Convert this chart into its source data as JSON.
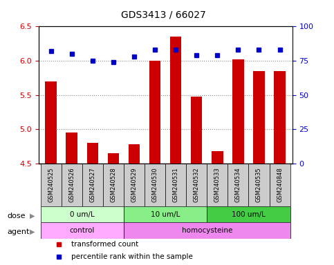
{
  "title": "GDS3413 / 66027",
  "samples": [
    "GSM240525",
    "GSM240526",
    "GSM240527",
    "GSM240528",
    "GSM240529",
    "GSM240530",
    "GSM240531",
    "GSM240532",
    "GSM240533",
    "GSM240534",
    "GSM240535",
    "GSM240848"
  ],
  "bar_values": [
    5.7,
    4.95,
    4.8,
    4.65,
    4.78,
    6.0,
    6.35,
    5.48,
    4.68,
    6.02,
    5.85,
    5.85
  ],
  "blue_values": [
    82,
    80,
    75,
    74,
    78,
    83,
    83,
    79,
    79,
    83,
    83,
    83
  ],
  "ylim_left": [
    4.5,
    6.5
  ],
  "ylim_right": [
    0,
    100
  ],
  "yticks_left": [
    4.5,
    5.0,
    5.5,
    6.0,
    6.5
  ],
  "yticks_right": [
    0,
    25,
    50,
    75,
    100
  ],
  "bar_color": "#cc0000",
  "blue_color": "#0000cc",
  "dot_line_y": [
    6.0,
    5.5,
    5.0
  ],
  "dose_groups": [
    {
      "label": "0 um/L",
      "start": 0,
      "end": 4,
      "color": "#ccffcc"
    },
    {
      "label": "10 um/L",
      "start": 4,
      "end": 8,
      "color": "#88ee88"
    },
    {
      "label": "100 um/L",
      "start": 8,
      "end": 12,
      "color": "#44cc44"
    }
  ],
  "agent_groups": [
    {
      "label": "control",
      "start": 0,
      "end": 4,
      "color": "#ffaaff"
    },
    {
      "label": "homocysteine",
      "start": 4,
      "end": 12,
      "color": "#ee88ee"
    }
  ],
  "legend_items": [
    {
      "label": "transformed count",
      "color": "#cc0000",
      "marker": "s"
    },
    {
      "label": "percentile rank within the sample",
      "color": "#0000cc",
      "marker": "s"
    }
  ],
  "xlabel_dose": "dose",
  "xlabel_agent": "agent",
  "background_color": "#ffffff",
  "plot_bg": "#ffffff",
  "tick_bg": "#cccccc",
  "title_fontsize": 10
}
